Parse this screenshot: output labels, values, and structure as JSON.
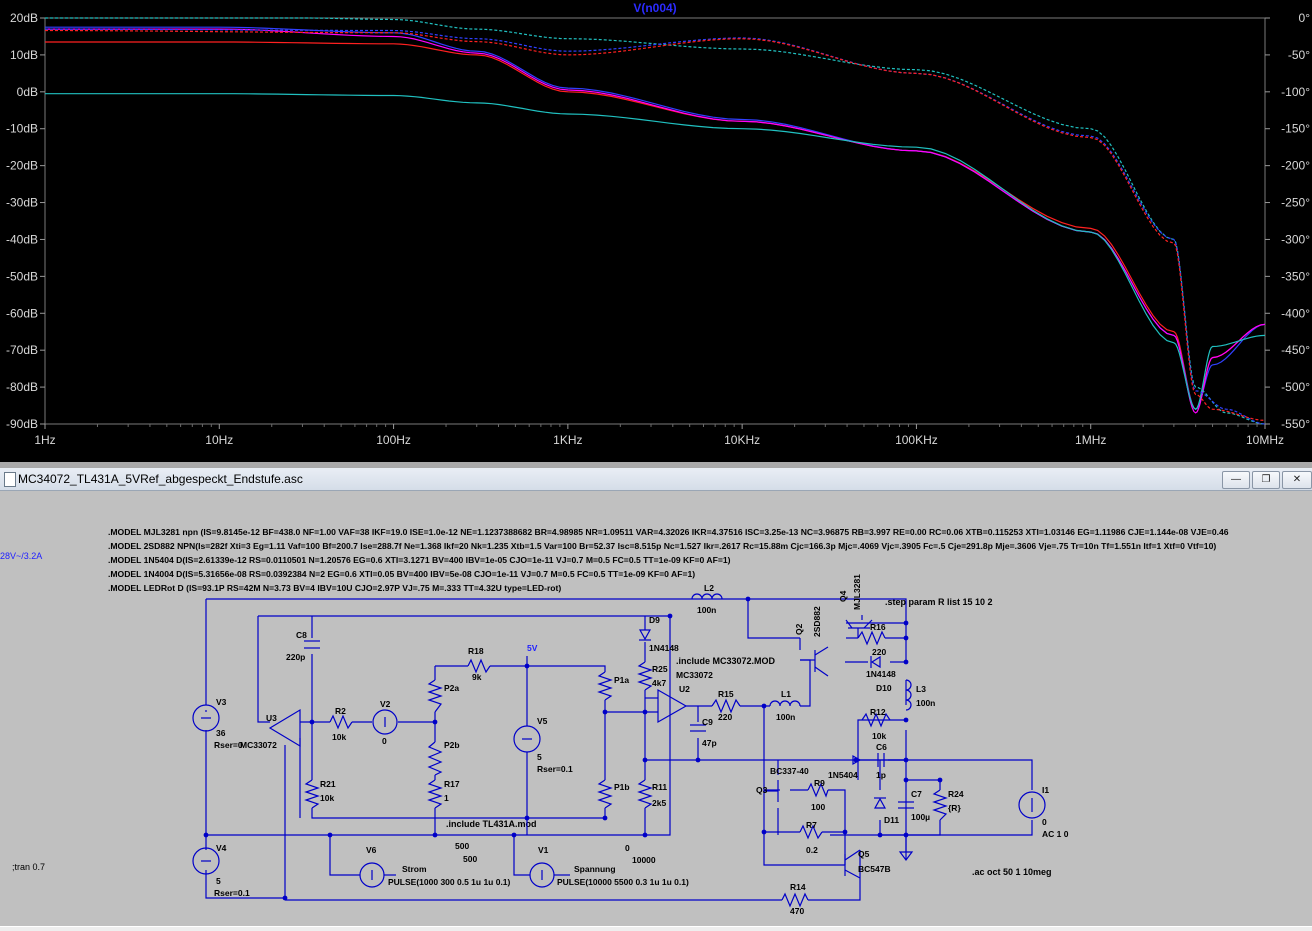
{
  "plot": {
    "trace_title": "V(n004)",
    "left_axis_labels": [
      "20dB",
      "10dB",
      "0dB",
      "-10dB",
      "-20dB",
      "-30dB",
      "-40dB",
      "-50dB",
      "-60dB",
      "-70dB",
      "-80dB",
      "-90dB"
    ],
    "right_axis_labels": [
      "0°",
      "-50°",
      "-100°",
      "-150°",
      "-200°",
      "-250°",
      "-300°",
      "-350°",
      "-400°",
      "-450°",
      "-500°",
      "-550°"
    ],
    "x_axis_labels": [
      "1Hz",
      "10Hz",
      "100Hz",
      "1KHz",
      "10KHz",
      "100KHz",
      "1MHz",
      "10MHz"
    ]
  },
  "chart_data": {
    "type": "line",
    "title": "V(n004)",
    "x_scale": "log",
    "xlim": [
      1,
      10000000
    ],
    "ylim_left": [
      -90,
      20
    ],
    "ylim_right": [
      -550,
      0
    ],
    "grid": false,
    "x_ticks": [
      "1Hz",
      "10Hz",
      "100Hz",
      "1KHz",
      "10KHz",
      "100KHz",
      "1MHz",
      "10MHz"
    ],
    "y_ticks_left": [
      "20dB",
      "10dB",
      "0dB",
      "-10dB",
      "-20dB",
      "-30dB",
      "-40dB",
      "-50dB",
      "-60dB",
      "-70dB",
      "-80dB",
      "-90dB"
    ],
    "y_ticks_right": [
      "0°",
      "-50°",
      "-100°",
      "-150°",
      "-200°",
      "-250°",
      "-300°",
      "-350°",
      "-400°",
      "-450°",
      "-500°",
      "-550°"
    ],
    "series": [
      {
        "color": "#ff2020",
        "style": "solid",
        "axis": "dB",
        "points": [
          [
            1,
            13.5
          ],
          [
            10,
            13.5
          ],
          [
            100,
            13
          ],
          [
            300,
            10
          ],
          [
            1000,
            0
          ],
          [
            10000,
            -8
          ],
          [
            100000,
            -16
          ],
          [
            1000000,
            -37
          ],
          [
            3000000,
            -65
          ],
          [
            4000000,
            -86
          ],
          [
            5000000,
            -72
          ],
          [
            10000000,
            -63
          ]
        ]
      },
      {
        "color": "#3040ff",
        "style": "solid",
        "axis": "dB",
        "points": [
          [
            1,
            17.5
          ],
          [
            10,
            17.5
          ],
          [
            100,
            16
          ],
          [
            300,
            11
          ],
          [
            1000,
            1
          ],
          [
            10000,
            -7.5
          ],
          [
            100000,
            -16
          ],
          [
            1000000,
            -38
          ],
          [
            3000000,
            -66
          ],
          [
            4000000,
            -86
          ],
          [
            5000000,
            -74
          ],
          [
            10000000,
            -63
          ]
        ]
      },
      {
        "color": "#ff00ff",
        "style": "solid",
        "axis": "dB",
        "points": [
          [
            1,
            17
          ],
          [
            10,
            17
          ],
          [
            100,
            15
          ],
          [
            300,
            10.5
          ],
          [
            1000,
            0.5
          ],
          [
            10000,
            -8
          ],
          [
            100000,
            -16
          ],
          [
            1000000,
            -38
          ],
          [
            3000000,
            -66
          ],
          [
            4000000,
            -87
          ],
          [
            5000000,
            -72
          ],
          [
            10000000,
            -63
          ]
        ]
      },
      {
        "color": "#20c0c0",
        "style": "solid",
        "axis": "dB",
        "points": [
          [
            1,
            -0.5
          ],
          [
            10,
            -0.5
          ],
          [
            100,
            -1
          ],
          [
            300,
            -3
          ],
          [
            1000,
            -6
          ],
          [
            10000,
            -10
          ],
          [
            100000,
            -15
          ],
          [
            1000000,
            -38
          ],
          [
            3000000,
            -68
          ],
          [
            4000000,
            -86
          ],
          [
            5000000,
            -69
          ],
          [
            10000000,
            -66
          ]
        ]
      },
      {
        "color": "#20c0c0",
        "style": "dashed",
        "axis": "phase",
        "points": [
          [
            1,
            0
          ],
          [
            10,
            0
          ],
          [
            30,
            0
          ],
          [
            100,
            -2
          ],
          [
            300,
            -15
          ],
          [
            1000,
            -28
          ],
          [
            10000,
            -42
          ],
          [
            100000,
            -70
          ],
          [
            1000000,
            -150
          ],
          [
            3000000,
            -300
          ],
          [
            4000000,
            -500
          ],
          [
            6000000,
            -535
          ],
          [
            10000000,
            -550
          ]
        ]
      },
      {
        "color": "#3040ff",
        "style": "dashed",
        "axis": "phase",
        "points": [
          [
            1,
            -15
          ],
          [
            100,
            -17
          ],
          [
            300,
            -28
          ],
          [
            1000,
            -45
          ],
          [
            10000,
            -27
          ],
          [
            100000,
            -75
          ],
          [
            1000000,
            -160
          ],
          [
            3000000,
            -300
          ],
          [
            4000000,
            -505
          ],
          [
            6000000,
            -530
          ],
          [
            10000000,
            -550
          ]
        ]
      },
      {
        "color": "#ff2020",
        "style": "dashed",
        "axis": "phase",
        "points": [
          [
            1,
            -17
          ],
          [
            100,
            -20
          ],
          [
            300,
            -32
          ],
          [
            1000,
            -50
          ],
          [
            10000,
            -28
          ],
          [
            100000,
            -75
          ],
          [
            1000000,
            -162
          ],
          [
            3000000,
            -305
          ],
          [
            4000000,
            -510
          ],
          [
            5000000,
            -530
          ],
          [
            10000000,
            -545
          ]
        ]
      }
    ]
  },
  "window": {
    "title": "MC34072_TL431A_5VRef_abgespeckt_Endstufe.asc",
    "minimize": "—",
    "restore": "❐",
    "close": "✕"
  },
  "schematic": {
    "models": [
      ".MODEL MJL3281 npn (IS=9.8145e-12 BF=438.0 NF=1.00 VAF=38 IKF=19.0 ISE=1.0e-12 NE=1.1237388682 BR=4.98985 NR=1.09511 VAR=4.32026 IKR=4.37516 ISC=3.25e-13 NC=3.96875 RB=3.997 RE=0.00 RC=0.06 XTB=0.115253 XTI=1.03146 EG=1.11986 CJE=1.144e-08 VJE=0.46",
      ".MODEL 2SD882 NPN(Is=282f Xti=3 Eg=1.11 Vaf=100 Bf=200.7 Ise=288.7f Ne=1.368 Ikf=20 Nk=1.235 Xtb=1.5 Var=100 Br=52.37 Isc=8.515p Nc=1.527 Ikr=.2617 Rc=15.88m Cjc=166.3p Mjc=.4069 Vjc=.3905 Fc=.5 Cje=291.8p Mje=.3606 Vje=.75 Tr=10n Tf=1.551n Itf=1 Xtf=0 Vtf=10)",
      ".MODEL 1N5404 D(IS=2.61339e-12 RS=0.0110501 N=1.20576 EG=0.6 XTI=3.1271 BV=400 IBV=1e-05 CJO=1e-11 VJ=0.7 M=0.5 FC=0.5 TT=1e-09 KF=0 AF=1)",
      ".MODEL 1N4004 D(IS=5.31656e-08 RS=0.0392384 N=2 EG=0.6 XTI=0.05 BV=400 IBV=5e-08 CJO=1e-11 VJ=0.7 M=0.5 FC=0.5 TT=1e-09 KF=0 AF=1)",
      ".MODEL LEDRot D (IS=93.1P RS=42M N=3.73 BV=4 IBV=10U CJO=2.97P VJ=.75 M=.333 TT=4.32U type=LED-rot)"
    ],
    "side_note": "28V~/3.2A",
    "step_param": ".step param R list 15 10 2",
    "include_mc": ".include MC33072.MOD",
    "include_tl": ".include TL431A.mod",
    "tran": ";tran 0.7",
    "ac": ".ac oct 50 1 10meg",
    "labels": {
      "V3": "V3",
      "V3_val": "36",
      "V3_rser": "Rser=0",
      "V4": "V4",
      "V4_val": "5",
      "V4_rser": "Rser=0.1",
      "U3": "U3",
      "U3_model": "MC33072",
      "C8": "C8",
      "C8_val": "220p",
      "R2": "R2",
      "R2_val": "10k",
      "V2": "V2",
      "V2_val": "0",
      "R21": "R21",
      "R21_val": "10k",
      "R18": "R18",
      "R18_val": "9k",
      "net_5V": "5V",
      "P2a": "P2a",
      "P2b": "P2b",
      "R17": "R17",
      "R17_val": "1",
      "V5": "V5",
      "V5_val": "5",
      "V5_rser": "Rser=0.1",
      "P1a": "P1a",
      "P1b": "P1b",
      "D9": "D9",
      "D9_model": "1N4148",
      "R25": "R25",
      "R25_val": "4k7",
      "U2": "U2",
      "U2_model": "MC33072",
      "R11": "R11",
      "R11_val": "2k5",
      "C9": "C9",
      "C9_val": "47p",
      "R15": "R15",
      "R15_val": "220",
      "L1": "L1",
      "L1_val": "100n",
      "L2": "L2",
      "L2_val": "100n",
      "Q2": "Q2",
      "Q2_model": "2SD882",
      "Q4": "Q4",
      "Q4_model": "MJL3281",
      "R16": "R16",
      "R16_val": "220",
      "D10_model": "1N4148",
      "D10": "D10",
      "L3": "L3",
      "L3_val": "100n",
      "R12": "R12",
      "R12_val": "10k",
      "C6": "C6",
      "C6_val": "1p",
      "D_1N5404": "1N5404",
      "Q3_model": "BC337-40",
      "Q3": "Q3",
      "R9": "R9",
      "R9_val": "100",
      "R7": "R7",
      "R7_val": "0.2",
      "D11": "D11",
      "C7": "C7",
      "C7_val": "100µ",
      "R24": "R24",
      "R24_val": "{R}",
      "I1": "I1",
      "I1_val": "0",
      "I1_ac": "AC 1 0",
      "Q5": "Q5",
      "Q5_model": "BC547B",
      "R14": "R14",
      "R14_val": "470",
      "V6": "V6",
      "V6_net": "Strom",
      "V6_pulse": "PULSE(1000 300 0.5 1u 1u 0.1)",
      "V1": "V1",
      "V1_net": "Spannung",
      "V1_pulse": "PULSE(10000 5500 0.3 1u 1u 0.1)",
      "n500a": "500",
      "n500b": "500",
      "n0": "0",
      "n10000": "10000"
    }
  }
}
